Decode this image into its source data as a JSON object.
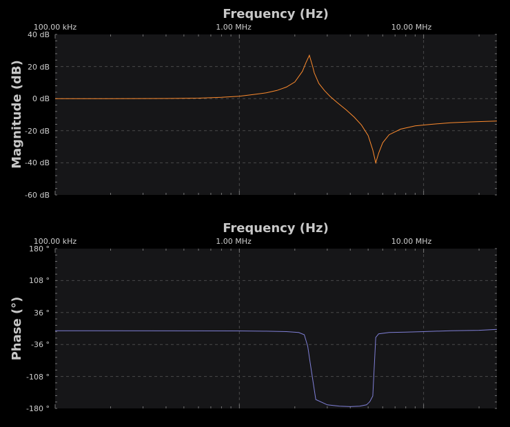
{
  "colors": {
    "background": "#000000",
    "plot_background": "#161618",
    "grid": "#4a4a4a",
    "text": "#d0d0d0",
    "title": "#c8c8c8",
    "magnitude_trace": "#ff8c2e",
    "phase_trace": "#8080d8"
  },
  "chart_data": [
    {
      "type": "line",
      "xscale": "log",
      "xlabel": "Frequency (Hz)",
      "ylabel": "Magnitude (dB)",
      "xlim": [
        100000,
        25000000
      ],
      "ylim": [
        -60,
        40
      ],
      "x_ticks": [
        {
          "value": 100000,
          "label": "100.00 kHz"
        },
        {
          "value": 1000000,
          "label": "1.00 MHz"
        },
        {
          "value": 10000000,
          "label": "10.00 MHz"
        }
      ],
      "y_ticks": [
        {
          "value": 40,
          "label": "40 dB"
        },
        {
          "value": 20,
          "label": "20 dB"
        },
        {
          "value": 0,
          "label": "0 dB"
        },
        {
          "value": -20,
          "label": "-20 dB"
        },
        {
          "value": -40,
          "label": "-40 dB"
        },
        {
          "value": -60,
          "label": "-60 dB"
        }
      ],
      "grid": true,
      "x": [
        100000,
        200000,
        400000,
        600000,
        800000,
        1000000,
        1200000,
        1400000,
        1600000,
        1800000,
        2000000,
        2200000,
        2300000,
        2400000,
        2500000,
        2550000,
        2700000,
        2900000,
        3100000,
        3400000,
        3800000,
        4200000,
        4600000,
        5000000,
        5300000,
        5500000,
        5700000,
        6000000,
        6500000,
        7500000,
        9000000,
        11000000,
        14000000,
        18000000,
        25000000
      ],
      "values": [
        0,
        0,
        0.1,
        0.3,
        0.8,
        1.5,
        2.6,
        3.6,
        5.1,
        7.2,
        10.4,
        17,
        22.5,
        27,
        20,
        16,
        9.5,
        5,
        1.5,
        -2.5,
        -7,
        -11.5,
        -16.5,
        -23,
        -32,
        -40,
        -34,
        -27.5,
        -22.5,
        -19,
        -17,
        -16,
        -15,
        -14.5,
        -14
      ]
    },
    {
      "type": "line",
      "xscale": "log",
      "xlabel": "Frequency (Hz)",
      "ylabel": "Phase (°)",
      "xlim": [
        100000,
        25000000
      ],
      "ylim": [
        -180,
        180
      ],
      "x_ticks": [
        {
          "value": 100000,
          "label": "100.00 kHz"
        },
        {
          "value": 1000000,
          "label": "1.00 MHz"
        },
        {
          "value": 10000000,
          "label": "10.00 MHz"
        }
      ],
      "y_ticks": [
        {
          "value": 180,
          "label": "180 °"
        },
        {
          "value": 108,
          "label": "108 °"
        },
        {
          "value": 36,
          "label": "36 °"
        },
        {
          "value": -36,
          "label": "-36 °"
        },
        {
          "value": -108,
          "label": "-108 °"
        },
        {
          "value": -180,
          "label": "-180 °"
        }
      ],
      "grid": true,
      "x": [
        100000,
        1000000,
        1400000,
        1800000,
        2100000,
        2250000,
        2350000,
        2450000,
        2600000,
        3000000,
        3500000,
        4000000,
        4500000,
        4900000,
        5100000,
        5300000,
        5500000,
        5700000,
        6500000,
        8000000,
        10000000,
        14000000,
        20000000,
        25000000
      ],
      "values": [
        -5,
        -5.5,
        -6,
        -7,
        -9,
        -14,
        -40,
        -90,
        -160,
        -172,
        -175,
        -176,
        -175,
        -172,
        -165,
        -152,
        -20,
        -12,
        -9,
        -8,
        -7,
        -5,
        -4,
        -2
      ]
    }
  ]
}
